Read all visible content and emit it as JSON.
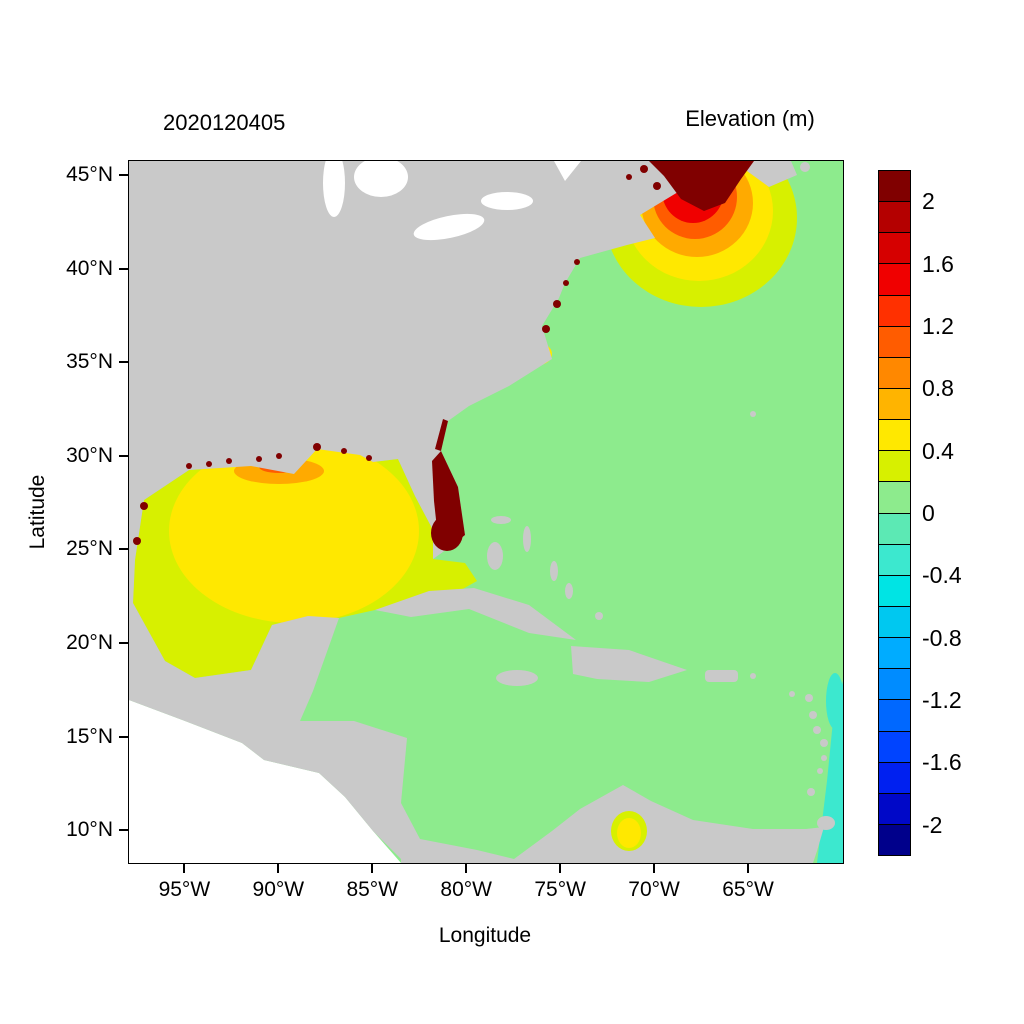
{
  "figure": {
    "timestamp_title": "2020120405",
    "colorbar_title": "Elevation (m)",
    "xlabel": "Longitude",
    "ylabel": "Latitude"
  },
  "palette": {
    "land": "#c9c9c9",
    "lake": "#ffffff",
    "outside_domain": "#ffffff",
    "ocean_green": "#8deb8d",
    "yellow_green": "#d7f000",
    "yellow": "#ffe800",
    "orange": "#ffaa00",
    "orange_red": "#ff5c00",
    "red": "#f00000",
    "maroon": "#800000",
    "turquoise": "#3ce8cf"
  },
  "chart_data": {
    "type": "heatmap",
    "title": "Elevation (m)",
    "timestamp": "2020120405",
    "xlabel": "Longitude",
    "ylabel": "Latitude",
    "domain": {
      "lon_max_w": 98,
      "lon_min_w": 60,
      "lat_min": 8.3,
      "lat_max": 45.8
    },
    "lat_ticks": [
      {
        "value": 45,
        "label": "45°N"
      },
      {
        "value": 40,
        "label": "40°N"
      },
      {
        "value": 35,
        "label": "35°N"
      },
      {
        "value": 30,
        "label": "30°N"
      },
      {
        "value": 25,
        "label": "25°N"
      },
      {
        "value": 20,
        "label": "20°N"
      },
      {
        "value": 15,
        "label": "15°N"
      },
      {
        "value": 10,
        "label": "10°N"
      }
    ],
    "lon_ticks": [
      {
        "value": 95,
        "label": "95°W"
      },
      {
        "value": 90,
        "label": "90°W"
      },
      {
        "value": 85,
        "label": "85°W"
      },
      {
        "value": 80,
        "label": "80°W"
      },
      {
        "value": 75,
        "label": "75°W"
      },
      {
        "value": 70,
        "label": "70°W"
      },
      {
        "value": 65,
        "label": "65°W"
      }
    ],
    "colorbar": {
      "range": [
        -2.2,
        2.2
      ],
      "step": 0.2,
      "tick_labels": [
        "2",
        "1.6",
        "1.2",
        "0.8",
        "0.4",
        "0",
        "-0.4",
        "-0.8",
        "-1.2",
        "-1.6",
        "-2"
      ],
      "colors_top_to_bottom": [
        "#800000",
        "#b40000",
        "#d60000",
        "#f00000",
        "#ff3000",
        "#ff5c00",
        "#ff8800",
        "#ffb400",
        "#ffe800",
        "#d7f000",
        "#8deb8d",
        "#5ce9b4",
        "#3ce8cf",
        "#00e4e4",
        "#00c8f0",
        "#00acff",
        "#008cff",
        "#0068ff",
        "#0044ff",
        "#0020f0",
        "#0008c8",
        "#00008b"
      ]
    },
    "regions": [
      {
        "name": "Bay of Fundy / Gulf of Maine hotspot (~67W, 43-46N)",
        "approx_elevation_m": "+1.0 to >+2.0, concentric rings"
      },
      {
        "name": "South Florida peninsula coast",
        "approx_elevation_m": ">+2.0 (dark red)"
      },
      {
        "name": "Gulf of Mexico interior",
        "approx_elevation_m": "+0.2 to +0.6 (yellow-green to yellow)"
      },
      {
        "name": "Northern Gulf coast marshes (LA/MS/AL/TX)",
        "approx_elevation_m": "localized >+2.0 specks"
      },
      {
        "name": "Mid-Atlantic estuaries / Pamlico Sound",
        "approx_elevation_m": "+0.4 to +1.0"
      },
      {
        "name": "Open Atlantic and Caribbean",
        "approx_elevation_m": "0 to +0.2 (green)"
      },
      {
        "name": "Southeast edge near 60W, 10-20N",
        "approx_elevation_m": "-0.2 to -0.4 (turquoise)"
      },
      {
        "name": "Lake Maracaibo area",
        "approx_elevation_m": "+0.4 to +0.6"
      },
      {
        "name": "Land",
        "approx_elevation_m": "masked gray"
      },
      {
        "name": "Eastern Pacific (lower-left)",
        "approx_elevation_m": "outside model domain (white)"
      }
    ]
  }
}
